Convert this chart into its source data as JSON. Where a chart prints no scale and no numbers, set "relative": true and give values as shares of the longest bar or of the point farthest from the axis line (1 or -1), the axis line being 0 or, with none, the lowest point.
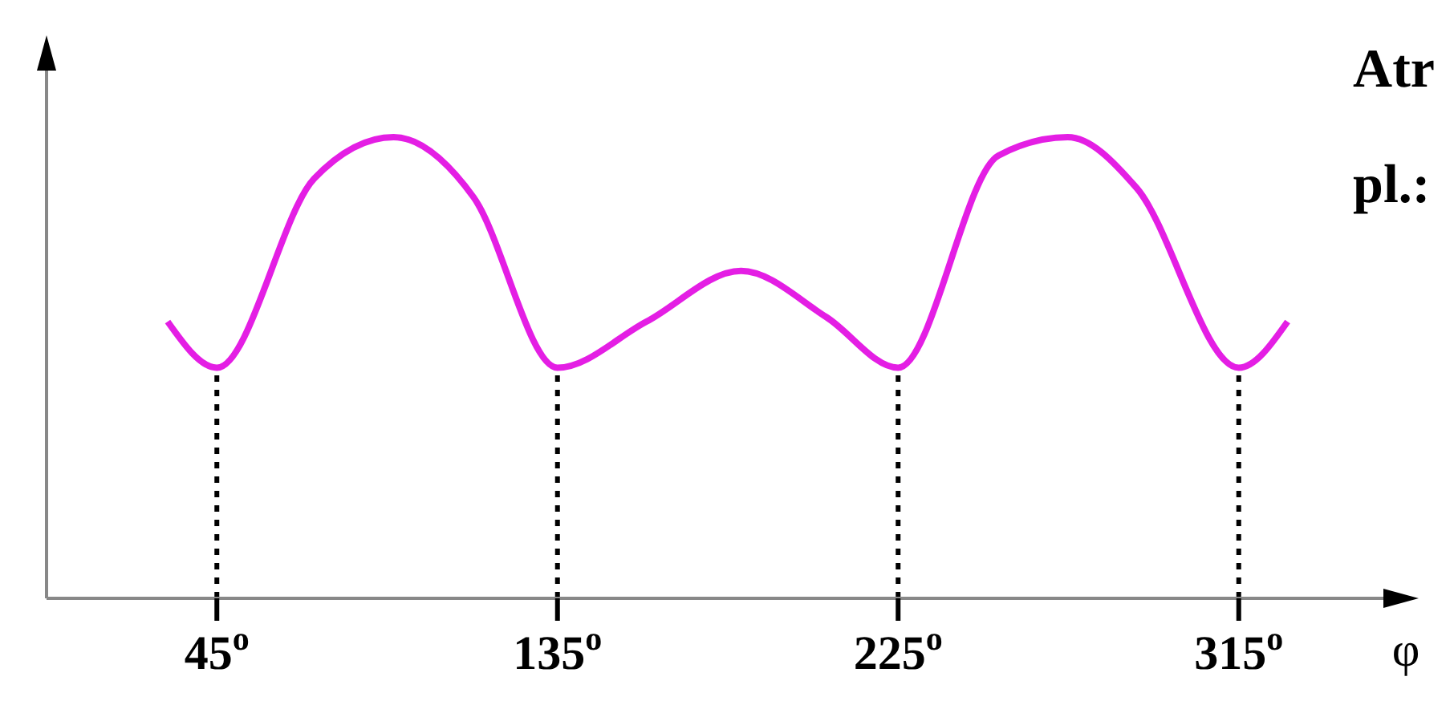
{
  "chart_data": {
    "type": "line",
    "relative": true,
    "xlabel": "φ",
    "annotations": [
      "Atr",
      "pl.:"
    ],
    "x": [
      32,
      45,
      70.7,
      91.7,
      112.8,
      135,
      158.5,
      183.5,
      206,
      225,
      251.5,
      269.8,
      288,
      315,
      327.9
    ],
    "series": [
      {
        "color": "#e41ee4",
        "values": [
          0.6,
          0.5,
          0.91,
          1.0,
          0.87,
          0.5,
          0.6,
          0.71,
          0.61,
          0.5,
          0.96,
          1.0,
          0.89,
          0.5,
          0.6
        ]
      }
    ],
    "xlim": [
      0,
      360
    ],
    "xticks": [
      {
        "value": 45,
        "label": "45$^{o}$"
      },
      {
        "value": 135,
        "label": "135$^{o}$"
      },
      {
        "value": 225,
        "label": "225$^{o}$"
      },
      {
        "value": 315,
        "label": "315$^{o}$"
      }
    ],
    "ref_lines": [
      {
        "axis": "x",
        "value": 45,
        "line_style": "dotted"
      },
      {
        "axis": "x",
        "value": 135,
        "line_style": "dotted"
      },
      {
        "axis": "x",
        "value": 225,
        "line_style": "dotted"
      },
      {
        "axis": "x",
        "value": 315,
        "line_style": "dotted"
      }
    ],
    "grid": false,
    "legend": false,
    "marker": "none",
    "line_style": "solid"
  }
}
